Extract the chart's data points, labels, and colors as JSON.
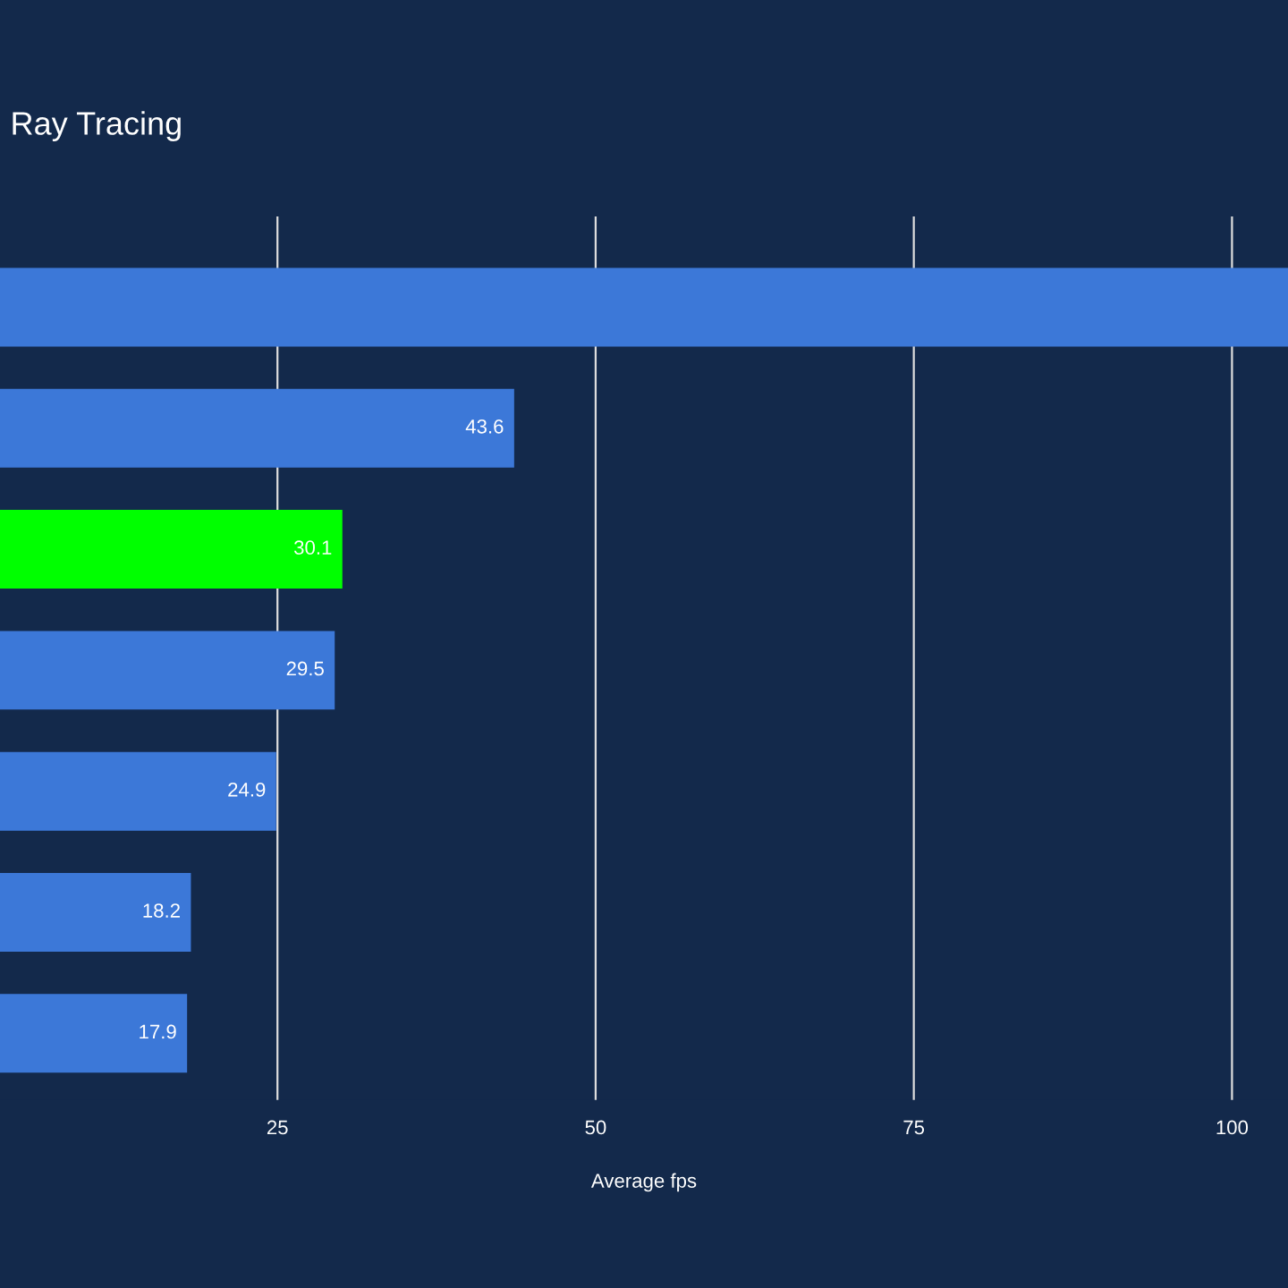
{
  "chart_data": {
    "type": "bar",
    "orientation": "horizontal",
    "title": "Ray Tracing",
    "xlabel": "Average fps",
    "categories": [
      null,
      null,
      null,
      null,
      null,
      null,
      null
    ],
    "values": [
      104.4,
      43.6,
      30.1,
      29.5,
      24.9,
      18.2,
      17.9
    ],
    "value_labels": [
      null,
      "43.6",
      "30.1",
      "29.5",
      "24.9",
      "18.2",
      "17.9"
    ],
    "colors": [
      "#3c78d8",
      "#3c78d8",
      "#00ff00",
      "#3c78d8",
      "#3c78d8",
      "#3c78d8",
      "#3c78d8"
    ],
    "xlim": [
      3.2,
      104.4
    ],
    "xticks": [
      25,
      50,
      75,
      100
    ],
    "grid": "x",
    "tick_labels": "x"
  }
}
